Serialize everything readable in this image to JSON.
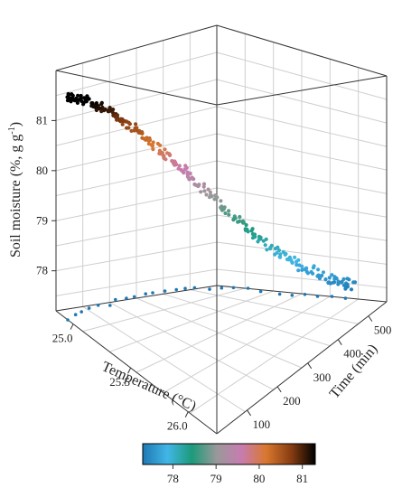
{
  "chart_data": {
    "type": "scatter",
    "dimensions": 3,
    "zlabel": "Soil moisture (%, g g⁻¹)",
    "zlabel_main": "Soil moisture (%, g g",
    "zlabel_sup": "-1",
    "zlabel_close": ")",
    "ylabel": "Temperature (°C)",
    "xlabel": "Time (min)",
    "z_ticks": [
      "78",
      "79",
      "80",
      "81"
    ],
    "temperature_ticks": [
      "25.0",
      "25.5",
      "26.0"
    ],
    "time_ticks": [
      "100",
      "200",
      "300",
      "400",
      "500"
    ],
    "zlim": [
      77.2,
      82.0
    ],
    "temperature_range": [
      24.85,
      26.25
    ],
    "time_range": [
      0,
      560
    ],
    "colorbar": {
      "ticks": [
        "78",
        "79",
        "80",
        "81"
      ],
      "range": [
        77.3,
        81.3
      ],
      "colors": [
        "#1f78b4",
        "#41b6e6",
        "#1d9a7a",
        "#999999",
        "#c77cb1",
        "#d9782f",
        "#8a3e12",
        "#000000"
      ]
    },
    "grid": true,
    "series": [
      {
        "points": [
          [
            0,
            24.95,
            81.65
          ],
          [
            40,
            24.97,
            81.45
          ],
          [
            80,
            25.02,
            81.2
          ],
          [
            120,
            25.06,
            80.9
          ],
          [
            160,
            25.12,
            80.55
          ],
          [
            200,
            25.18,
            80.15
          ],
          [
            240,
            25.25,
            79.75
          ],
          [
            280,
            25.34,
            79.3
          ],
          [
            320,
            25.45,
            78.85
          ],
          [
            360,
            25.58,
            78.4
          ],
          [
            400,
            25.72,
            78.0
          ],
          [
            440,
            25.85,
            77.75
          ],
          [
            480,
            25.98,
            77.55
          ],
          [
            520,
            26.08,
            77.4
          ]
        ]
      }
    ]
  }
}
